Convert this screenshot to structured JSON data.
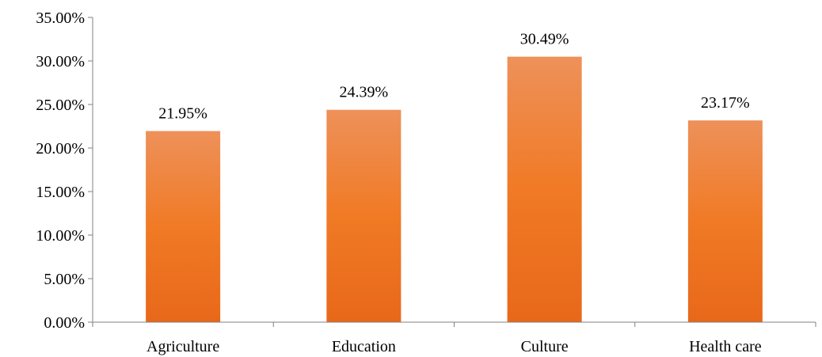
{
  "chart_data": {
    "type": "bar",
    "categories": [
      "Agriculture",
      "Education",
      "Culture",
      "Health care"
    ],
    "values": [
      21.95,
      24.39,
      30.49,
      23.17
    ],
    "data_labels": [
      "21.95%",
      "24.39%",
      "30.49%",
      "23.17%"
    ],
    "title": "",
    "xlabel": "",
    "ylabel": "",
    "ylim": [
      0,
      35
    ],
    "y_ticks": [
      0,
      5,
      10,
      15,
      20,
      25,
      30,
      35
    ],
    "y_tick_labels": [
      "0.00%",
      "5.00%",
      "10.00%",
      "15.00%",
      "20.00%",
      "25.00%",
      "30.00%",
      "35.00%"
    ],
    "grid": false,
    "legend": "none",
    "colors": {
      "bar_top": "#EE915A",
      "bar_mid": "#F07A25",
      "bar_bottom": "#E8681A",
      "axis": "#808080"
    }
  }
}
